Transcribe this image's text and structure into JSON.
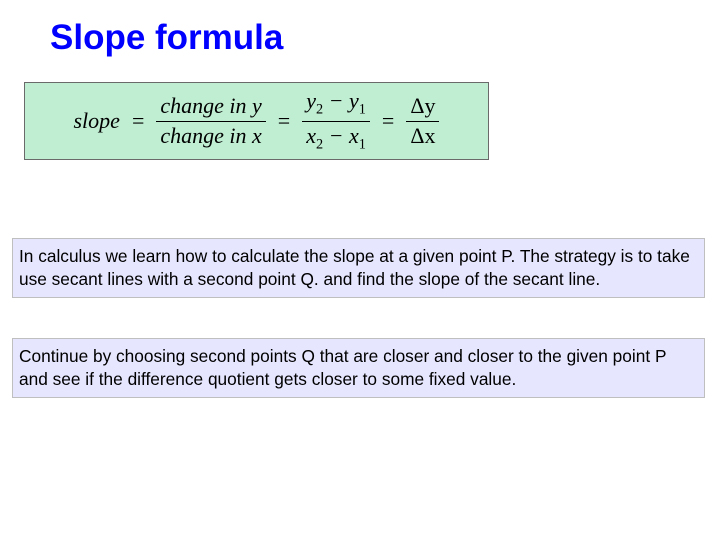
{
  "title": {
    "text": "Slope formula",
    "color": "#0000ff",
    "fontsize": 35
  },
  "formula_box": {
    "background_color": "#c0eed3",
    "border_color": "#6a6a6a",
    "text_color": "#000000",
    "slope_label": "slope",
    "eq": "=",
    "frac1_num": "change in y",
    "frac1_den": "change in x",
    "frac2_num_a": "y",
    "frac2_num_sub1": "2",
    "minus": " − ",
    "frac2_num_b": "y",
    "frac2_num_sub2": "1",
    "frac2_den_a": "x",
    "frac2_den_sub1": "2",
    "frac2_den_b": "x",
    "frac2_den_sub2": "1",
    "frac3_num": "Δy",
    "frac3_den": "Δx"
  },
  "para1": {
    "text": "In calculus we learn how to calculate the slope at a given point P. The strategy is to take use secant lines with a second point Q. and find the slope of the secant line.",
    "background_color": "#e6e6ff",
    "border_color": "#bfbfbf",
    "fontsize": 17.3
  },
  "para2": {
    "text": "Continue by choosing second points Q that are closer and closer to the given point P and see if the difference quotient gets closer to some fixed value.",
    "background_color": "#e6e6ff",
    "border_color": "#bfbfbf",
    "fontsize": 17.3
  }
}
